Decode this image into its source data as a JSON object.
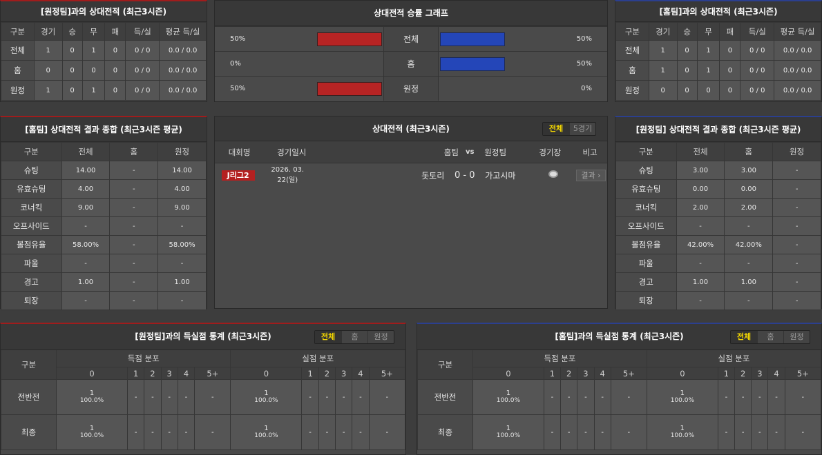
{
  "away_record": {
    "title": "[원정팀]과의 상대전적 (최근3시즌)",
    "headers": [
      "구분",
      "경기",
      "승",
      "무",
      "패",
      "득/실",
      "평균 득/실"
    ],
    "rows": [
      [
        "전체",
        "1",
        "0",
        "1",
        "0",
        "0 / 0",
        "0.0 / 0.0"
      ],
      [
        "홈",
        "0",
        "0",
        "0",
        "0",
        "0 / 0",
        "0.0 / 0.0"
      ],
      [
        "원정",
        "1",
        "0",
        "1",
        "0",
        "0 / 0",
        "0.0 / 0.0"
      ]
    ]
  },
  "home_record": {
    "title": "[홈팀]과의 상대전적 (최근3시즌)",
    "headers": [
      "구분",
      "경기",
      "승",
      "무",
      "패",
      "득/실",
      "평균 득/실"
    ],
    "rows": [
      [
        "전체",
        "1",
        "0",
        "1",
        "0",
        "0 / 0",
        "0.0 / 0.0"
      ],
      [
        "홈",
        "1",
        "0",
        "1",
        "0",
        "0 / 0",
        "0.0 / 0.0"
      ],
      [
        "원정",
        "0",
        "0",
        "0",
        "0",
        "0 / 0",
        "0.0 / 0.0"
      ]
    ]
  },
  "graph": {
    "title": "상대전적 승률 그래프",
    "colors": {
      "left": "#b72424",
      "right": "#2446b8"
    },
    "rows": [
      {
        "label": "전체",
        "left": "50%",
        "left_value": 50,
        "right": "50%",
        "right_value": 50
      },
      {
        "label": "홈",
        "left": "0%",
        "left_value": 0,
        "right": "50%",
        "right_value": 50
      },
      {
        "label": "원정",
        "left": "50%",
        "left_value": 50,
        "right": "0%",
        "right_value": 0
      }
    ]
  },
  "home_summary": {
    "title": "[홈팀] 상대전적 결과 종합 (최근3시즌 평균)",
    "headers": [
      "구분",
      "전체",
      "홈",
      "원정"
    ],
    "rows": [
      [
        "슈팅",
        "14.00",
        "-",
        "14.00"
      ],
      [
        "유효슈팅",
        "4.00",
        "-",
        "4.00"
      ],
      [
        "코너킥",
        "9.00",
        "-",
        "9.00"
      ],
      [
        "오프사이드",
        "-",
        "-",
        "-"
      ],
      [
        "볼점유율",
        "58.00%",
        "-",
        "58.00%"
      ],
      [
        "파울",
        "-",
        "-",
        "-"
      ],
      [
        "경고",
        "1.00",
        "-",
        "1.00"
      ],
      [
        "퇴장",
        "-",
        "-",
        "-"
      ]
    ]
  },
  "away_summary": {
    "title": "[원정팀] 상대전적 결과 종합 (최근3시즌 평균)",
    "headers": [
      "구분",
      "전체",
      "홈",
      "원정"
    ],
    "rows": [
      [
        "슈팅",
        "3.00",
        "3.00",
        "-"
      ],
      [
        "유효슈팅",
        "0.00",
        "0.00",
        "-"
      ],
      [
        "코너킥",
        "2.00",
        "2.00",
        "-"
      ],
      [
        "오프사이드",
        "-",
        "-",
        "-"
      ],
      [
        "볼점유율",
        "42.00%",
        "42.00%",
        "-"
      ],
      [
        "파울",
        "-",
        "-",
        "-"
      ],
      [
        "경고",
        "1.00",
        "1.00",
        "-"
      ],
      [
        "퇴장",
        "-",
        "-",
        "-"
      ]
    ]
  },
  "matches": {
    "title": "상대전적 (최근3시즌)",
    "toggle": [
      "전체",
      "5경기"
    ],
    "headers": {
      "league": "대회명",
      "date": "경기일시",
      "home": "홈팀",
      "vs": "vs",
      "away": "원정팀",
      "venue": "경기장",
      "note": "비고"
    },
    "rows": [
      {
        "league": "J리그2",
        "date": "2026. 03. 22(일)",
        "home": "돗토리",
        "score": "0 - 0",
        "away": "가고시마",
        "venue_icon": "stadium-icon",
        "note": "결과 ›"
      }
    ]
  },
  "away_goals": {
    "title": "[원정팀]과의 득실점 통계 (최근3시즌)",
    "toggle": [
      "전체",
      "홈",
      "원정"
    ],
    "label": "구분",
    "scored": "득점 분포",
    "conceded": "실점 분포",
    "buckets": [
      "0",
      "1",
      "2",
      "3",
      "4",
      "5+"
    ],
    "rows": [
      {
        "label": "전반전",
        "cells": [
          [
            "1",
            "100.0%"
          ],
          [
            "-"
          ],
          [
            "-"
          ],
          [
            "-"
          ],
          [
            "-"
          ],
          [
            "-"
          ],
          [
            "1",
            "100.0%"
          ],
          [
            "-"
          ],
          [
            "-"
          ],
          [
            "-"
          ],
          [
            "-"
          ],
          [
            "-"
          ]
        ]
      },
      {
        "label": "최종",
        "cells": [
          [
            "1",
            "100.0%"
          ],
          [
            "-"
          ],
          [
            "-"
          ],
          [
            "-"
          ],
          [
            "-"
          ],
          [
            "-"
          ],
          [
            "1",
            "100.0%"
          ],
          [
            "-"
          ],
          [
            "-"
          ],
          [
            "-"
          ],
          [
            "-"
          ],
          [
            "-"
          ]
        ]
      }
    ]
  },
  "home_goals": {
    "title": "[홈팀]과의 득실점 통계 (최근3시즌)",
    "toggle": [
      "전체",
      "홈",
      "원정"
    ],
    "label": "구분",
    "scored": "득점 분포",
    "conceded": "실점 분포",
    "buckets": [
      "0",
      "1",
      "2",
      "3",
      "4",
      "5+"
    ],
    "rows": [
      {
        "label": "전반전",
        "cells": [
          [
            "1",
            "100.0%"
          ],
          [
            "-"
          ],
          [
            "-"
          ],
          [
            "-"
          ],
          [
            "-"
          ],
          [
            "-"
          ],
          [
            "1",
            "100.0%"
          ],
          [
            "-"
          ],
          [
            "-"
          ],
          [
            "-"
          ],
          [
            "-"
          ],
          [
            "-"
          ]
        ]
      },
      {
        "label": "최종",
        "cells": [
          [
            "1",
            "100.0%"
          ],
          [
            "-"
          ],
          [
            "-"
          ],
          [
            "-"
          ],
          [
            "-"
          ],
          [
            "-"
          ],
          [
            "1",
            "100.0%"
          ],
          [
            "-"
          ],
          [
            "-"
          ],
          [
            "-"
          ],
          [
            "-"
          ],
          [
            "-"
          ]
        ]
      }
    ]
  }
}
